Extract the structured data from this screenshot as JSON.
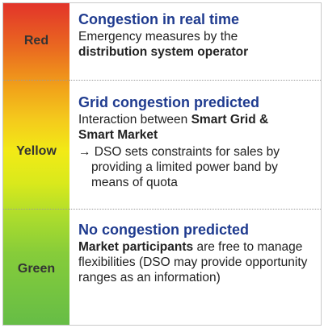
{
  "levels": [
    {
      "label": "Red",
      "title": "Congestion in real time",
      "text_plain_1": "Emergency measures by the",
      "text_bold_1": "distribution system operator"
    },
    {
      "label": "Yellow",
      "title": "Grid congestion predicted",
      "text_plain_1": "Interaction between ",
      "text_bold_1": "Smart Grid &",
      "text_bold_2": "Smart Market",
      "bullet": "→ DSO sets constraints for sales by providing a limited power band by means of quota"
    },
    {
      "label": "Green",
      "title": "No congestion predicted",
      "text_bold_1": "Market participants",
      "text_plain_1": " are free to manage flexibilities (DSO may provide opportunity ranges as an information)"
    }
  ]
}
